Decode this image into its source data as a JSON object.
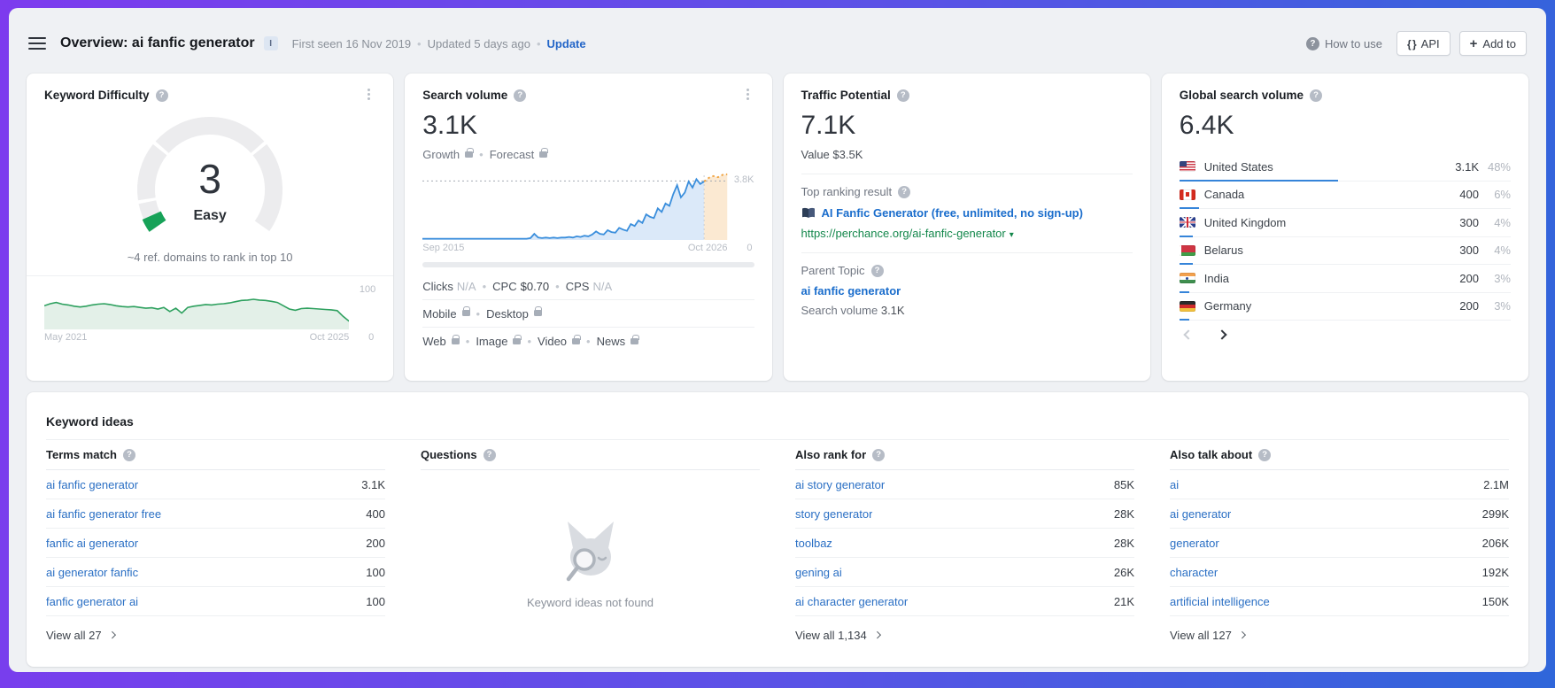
{
  "ui": {
    "colors": {
      "accent_blue": "#2a6fc4",
      "link_green": "#13874b",
      "kd_green": "#17a258",
      "chart_blue": "#3a8edc",
      "forecast_orange": "#f0a23e",
      "country_bar_blue": "#3584d9"
    }
  },
  "header": {
    "title": "Overview: ai fanfic generator",
    "badge": "I",
    "first_seen": "First seen 16 Nov 2019",
    "updated": "Updated 5 days ago",
    "update_link": "Update",
    "how_to_use": "How to use",
    "api_button": "API",
    "add_to_button": "Add to"
  },
  "cards": {
    "keyword_difficulty": {
      "title": "Keyword Difficulty",
      "value": "3",
      "label": "Easy",
      "hint": "~4 ref. domains to rank in top 10",
      "chart": {
        "type": "area",
        "x_start": "May 2021",
        "x_end": "Oct 2025",
        "y_top": "100",
        "y_bottom": "0",
        "ylim": [
          0,
          100
        ],
        "values": [
          58,
          63,
          66,
          62,
          60,
          57,
          55,
          57,
          60,
          62,
          63,
          61,
          58,
          56,
          55,
          56,
          54,
          52,
          53,
          50,
          54,
          44,
          52,
          40,
          54,
          57,
          59,
          61,
          60,
          62,
          63,
          65,
          68,
          71,
          72,
          74,
          72,
          71,
          69,
          66,
          58,
          50,
          47,
          51,
          52,
          51,
          50,
          49,
          48,
          46,
          32,
          20
        ]
      }
    },
    "search_volume": {
      "title": "Search volume",
      "value": "3.1K",
      "growth_label": "Growth",
      "forecast_label": "Forecast",
      "chart": {
        "type": "line",
        "x_start": "Sep 2015",
        "x_end": "Oct 2026",
        "y_bottom": "0",
        "ref_label": "3.8K",
        "ref_value": 97,
        "ylim": [
          0,
          112
        ],
        "history": [
          2,
          2,
          2,
          2,
          2,
          2,
          2,
          2,
          2,
          2,
          2,
          2,
          2,
          2,
          2,
          2,
          2,
          2,
          2,
          2,
          2,
          2,
          2,
          2,
          2,
          2,
          2,
          2,
          3,
          10,
          4,
          3,
          4,
          3,
          4,
          3,
          4,
          4,
          5,
          4,
          6,
          5,
          7,
          6,
          9,
          14,
          10,
          9,
          16,
          13,
          12,
          20,
          17,
          15,
          26,
          23,
          32,
          28,
          42,
          38,
          36,
          52,
          46,
          60,
          56,
          75,
          90,
          70,
          78,
          96,
          86,
          100,
          92,
          96
        ],
        "forecast": [
          96,
          102,
          105,
          103,
          107,
          108
        ]
      },
      "clicks_row": [
        {
          "label": "Clicks",
          "value": "N/A",
          "muted_value": true
        },
        {
          "label": "CPC",
          "value": "$0.70",
          "muted_value": false
        },
        {
          "label": "CPS",
          "value": "N/A",
          "muted_value": true
        }
      ],
      "device_row": [
        {
          "label": "Mobile"
        },
        {
          "label": "Desktop"
        }
      ],
      "serp_row": [
        {
          "label": "Web"
        },
        {
          "label": "Image"
        },
        {
          "label": "Video"
        },
        {
          "label": "News"
        }
      ]
    },
    "traffic_potential": {
      "title": "Traffic Potential",
      "value": "7.1K",
      "value_label": "Value",
      "value_amount": "$3.5K",
      "top_ranking_label": "Top ranking result",
      "top_result_title": "AI Fanfic Generator (free, unlimited, no sign-up)",
      "top_result_url": "https://perchance.org/ai-fanfic-generator",
      "parent_topic_label": "Parent Topic",
      "parent_topic": "ai fanfic generator",
      "parent_sv_label": "Search volume",
      "parent_sv_value": "3.1K"
    },
    "global_search_volume": {
      "title": "Global search volume",
      "value": "6.4K",
      "countries": [
        {
          "flag": "us",
          "name": "United States",
          "volume": "3.1K",
          "percent": "48%",
          "bar": 48
        },
        {
          "flag": "ca",
          "name": "Canada",
          "volume": "400",
          "percent": "6%",
          "bar": 6
        },
        {
          "flag": "gb",
          "name": "United Kingdom",
          "volume": "300",
          "percent": "4%",
          "bar": 4
        },
        {
          "flag": "by",
          "name": "Belarus",
          "volume": "300",
          "percent": "4%",
          "bar": 4
        },
        {
          "flag": "in",
          "name": "India",
          "volume": "200",
          "percent": "3%",
          "bar": 3
        },
        {
          "flag": "de",
          "name": "Germany",
          "volume": "200",
          "percent": "3%",
          "bar": 3
        }
      ]
    }
  },
  "keyword_ideas": {
    "title": "Keyword ideas",
    "columns": [
      {
        "header": "Terms match",
        "rows": [
          {
            "keyword": "ai fanfic generator",
            "volume": "3.1K"
          },
          {
            "keyword": "ai fanfic generator free",
            "volume": "400"
          },
          {
            "keyword": "fanfic ai generator",
            "volume": "200"
          },
          {
            "keyword": "ai generator fanfic",
            "volume": "100"
          },
          {
            "keyword": "fanfic generator ai",
            "volume": "100"
          }
        ],
        "view_all": "View all 27"
      },
      {
        "header": "Questions",
        "empty_text": "Keyword ideas not found"
      },
      {
        "header": "Also rank for",
        "rows": [
          {
            "keyword": "ai story generator",
            "volume": "85K"
          },
          {
            "keyword": "story generator",
            "volume": "28K"
          },
          {
            "keyword": "toolbaz",
            "volume": "28K"
          },
          {
            "keyword": "gening ai",
            "volume": "26K"
          },
          {
            "keyword": "ai character generator",
            "volume": "21K"
          }
        ],
        "view_all": "View all 1,134"
      },
      {
        "header": "Also talk about",
        "rows": [
          {
            "keyword": "ai",
            "volume": "2.1M"
          },
          {
            "keyword": "ai generator",
            "volume": "299K"
          },
          {
            "keyword": "generator",
            "volume": "206K"
          },
          {
            "keyword": "character",
            "volume": "192K"
          },
          {
            "keyword": "artificial intelligence",
            "volume": "150K"
          }
        ],
        "view_all": "View all 127"
      }
    ]
  }
}
